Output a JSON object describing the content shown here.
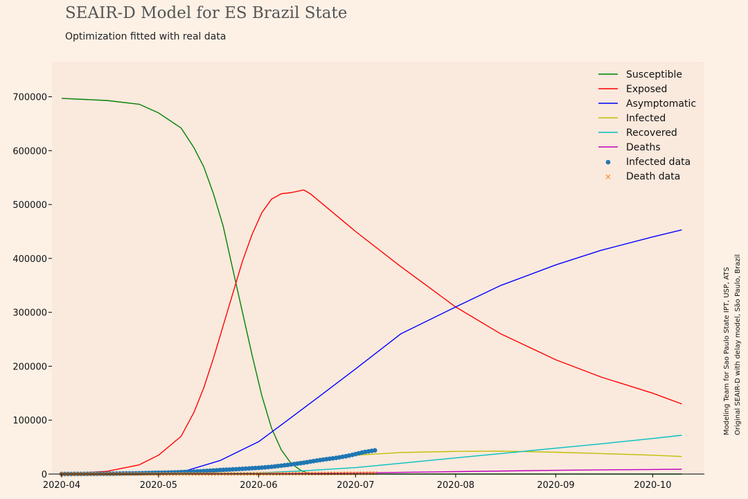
{
  "header": {
    "title": "SEAIR-D Model for ES Brazil State",
    "subtitle": "Optimization fitted with real data"
  },
  "credits": {
    "line1": "Modeling Team for Sao Paulo State IPT, USP, ATS",
    "line2": "Original SEAIR-D with delay model, São Paulo, Brazil"
  },
  "chart_data": {
    "type": "line",
    "title": "SEAIR-D Model for ES Brazil State",
    "subtitle": "Optimization fitted with real data",
    "xlabel": "",
    "ylabel": "",
    "x_range": [
      "2020-03-29",
      "2020-10-17"
    ],
    "ylim": [
      0,
      765000
    ],
    "x_ticks": [
      "2020-04",
      "2020-05",
      "2020-06",
      "2020-07",
      "2020-08",
      "2020-09",
      "2020-10"
    ],
    "x_tick_dates": [
      "2020-04-01",
      "2020-05-01",
      "2020-06-01",
      "2020-07-01",
      "2020-08-01",
      "2020-09-01",
      "2020-10-01"
    ],
    "y_ticks": [
      0,
      100000,
      200000,
      300000,
      400000,
      500000,
      600000,
      700000
    ],
    "grid": false,
    "legend_position": "top-right",
    "colors": {
      "background": "#fdf1e6",
      "plot_area": "#fae9dd",
      "susceptible": "#008000",
      "exposed": "#ff0000",
      "asymptomatic": "#0000ff",
      "infected": "#bfbf00",
      "recovered": "#00bfbf",
      "deaths": "#bf00bf",
      "infected_data": "#1f77b4",
      "death_data": "#ff7f0e"
    },
    "series": [
      {
        "name": "Susceptible",
        "color": "#008000",
        "marker": "line",
        "points": [
          [
            "2020-04-01",
            697000
          ],
          [
            "2020-04-15",
            693000
          ],
          [
            "2020-04-25",
            686000
          ],
          [
            "2020-05-01",
            670000
          ],
          [
            "2020-05-08",
            642000
          ],
          [
            "2020-05-12",
            605000
          ],
          [
            "2020-05-15",
            570000
          ],
          [
            "2020-05-18",
            520000
          ],
          [
            "2020-05-21",
            460000
          ],
          [
            "2020-05-24",
            380000
          ],
          [
            "2020-05-27",
            300000
          ],
          [
            "2020-05-30",
            220000
          ],
          [
            "2020-06-02",
            145000
          ],
          [
            "2020-06-05",
            85000
          ],
          [
            "2020-06-08",
            45000
          ],
          [
            "2020-06-11",
            20000
          ],
          [
            "2020-06-14",
            7000
          ],
          [
            "2020-06-17",
            0
          ],
          [
            "2020-10-10",
            0
          ]
        ]
      },
      {
        "name": "Exposed",
        "color": "#ff0000",
        "marker": "line",
        "points": [
          [
            "2020-04-01",
            0
          ],
          [
            "2020-04-15",
            5000
          ],
          [
            "2020-04-25",
            17000
          ],
          [
            "2020-05-01",
            35000
          ],
          [
            "2020-05-08",
            70000
          ],
          [
            "2020-05-12",
            115000
          ],
          [
            "2020-05-15",
            160000
          ],
          [
            "2020-05-18",
            215000
          ],
          [
            "2020-05-21",
            275000
          ],
          [
            "2020-05-24",
            335000
          ],
          [
            "2020-05-27",
            395000
          ],
          [
            "2020-05-30",
            445000
          ],
          [
            "2020-06-02",
            485000
          ],
          [
            "2020-06-05",
            510000
          ],
          [
            "2020-06-08",
            520000
          ],
          [
            "2020-06-11",
            522000
          ],
          [
            "2020-06-15",
            527000
          ],
          [
            "2020-06-17",
            520000
          ],
          [
            "2020-07-01",
            450000
          ],
          [
            "2020-07-15",
            385000
          ],
          [
            "2020-08-01",
            310000
          ],
          [
            "2020-08-15",
            260000
          ],
          [
            "2020-09-01",
            212000
          ],
          [
            "2020-09-15",
            180000
          ],
          [
            "2020-10-01",
            150000
          ],
          [
            "2020-10-10",
            130000
          ]
        ]
      },
      {
        "name": "Asymptomatic",
        "color": "#0000ff",
        "marker": "line",
        "points": [
          [
            "2020-04-01",
            0
          ],
          [
            "2020-04-20",
            500
          ],
          [
            "2020-05-01",
            2000
          ],
          [
            "2020-05-10",
            7000
          ],
          [
            "2020-05-20",
            25000
          ],
          [
            "2020-06-01",
            60000
          ],
          [
            "2020-06-10",
            100000
          ],
          [
            "2020-06-20",
            145000
          ],
          [
            "2020-07-01",
            195000
          ],
          [
            "2020-07-15",
            260000
          ],
          [
            "2020-08-01",
            310000
          ],
          [
            "2020-08-15",
            350000
          ],
          [
            "2020-09-01",
            388000
          ],
          [
            "2020-09-15",
            415000
          ],
          [
            "2020-10-01",
            440000
          ],
          [
            "2020-10-10",
            453000
          ]
        ]
      },
      {
        "name": "Infected",
        "color": "#bfbf00",
        "marker": "line",
        "points": [
          [
            "2020-04-01",
            0
          ],
          [
            "2020-05-01",
            1000
          ],
          [
            "2020-05-15",
            4000
          ],
          [
            "2020-06-01",
            12000
          ],
          [
            "2020-06-15",
            24000
          ],
          [
            "2020-07-01",
            35000
          ],
          [
            "2020-07-15",
            40000
          ],
          [
            "2020-08-01",
            42000
          ],
          [
            "2020-08-15",
            42500
          ],
          [
            "2020-09-01",
            40500
          ],
          [
            "2020-09-15",
            38000
          ],
          [
            "2020-10-01",
            35000
          ],
          [
            "2020-10-10",
            32500
          ]
        ]
      },
      {
        "name": "Recovered",
        "color": "#00bfbf",
        "marker": "line",
        "points": [
          [
            "2020-04-01",
            0
          ],
          [
            "2020-05-01",
            200
          ],
          [
            "2020-06-01",
            2000
          ],
          [
            "2020-06-15",
            6000
          ],
          [
            "2020-07-01",
            12000
          ],
          [
            "2020-07-15",
            20000
          ],
          [
            "2020-08-01",
            30000
          ],
          [
            "2020-08-15",
            38000
          ],
          [
            "2020-09-01",
            48000
          ],
          [
            "2020-09-15",
            56000
          ],
          [
            "2020-10-01",
            66000
          ],
          [
            "2020-10-10",
            72000
          ]
        ]
      },
      {
        "name": "Deaths",
        "color": "#bf00bf",
        "marker": "line",
        "points": [
          [
            "2020-04-01",
            0
          ],
          [
            "2020-05-01",
            100
          ],
          [
            "2020-06-01",
            500
          ],
          [
            "2020-07-01",
            2000
          ],
          [
            "2020-08-01",
            4500
          ],
          [
            "2020-09-01",
            7000
          ],
          [
            "2020-10-01",
            8500
          ],
          [
            "2020-10-10",
            9000
          ]
        ]
      },
      {
        "name": "Infected data",
        "color": "#1f77b4",
        "marker": "circle",
        "points": [
          [
            "2020-04-01",
            100
          ],
          [
            "2020-04-05",
            200
          ],
          [
            "2020-04-10",
            400
          ],
          [
            "2020-04-15",
            600
          ],
          [
            "2020-04-20",
            1000
          ],
          [
            "2020-04-25",
            1500
          ],
          [
            "2020-05-01",
            2500
          ],
          [
            "2020-05-05",
            3000
          ],
          [
            "2020-05-10",
            4000
          ],
          [
            "2020-05-15",
            5500
          ],
          [
            "2020-05-20",
            7500
          ],
          [
            "2020-05-25",
            9000
          ],
          [
            "2020-06-01",
            11500
          ],
          [
            "2020-06-05",
            13500
          ],
          [
            "2020-06-10",
            17000
          ],
          [
            "2020-06-15",
            21000
          ],
          [
            "2020-06-20",
            26000
          ],
          [
            "2020-06-25",
            30000
          ],
          [
            "2020-06-28",
            33000
          ],
          [
            "2020-07-01",
            37000
          ],
          [
            "2020-07-03",
            40000
          ],
          [
            "2020-07-05",
            42000
          ],
          [
            "2020-07-07",
            44000
          ]
        ]
      },
      {
        "name": "Death data",
        "color": "#ff7f0e",
        "marker": "x",
        "points": [
          [
            "2020-04-01",
            0
          ],
          [
            "2020-04-15",
            30
          ],
          [
            "2020-05-01",
            100
          ],
          [
            "2020-05-15",
            300
          ],
          [
            "2020-06-01",
            500
          ],
          [
            "2020-06-10",
            700
          ],
          [
            "2020-06-20",
            900
          ],
          [
            "2020-07-01",
            1200
          ],
          [
            "2020-07-07",
            1500
          ]
        ]
      }
    ]
  }
}
